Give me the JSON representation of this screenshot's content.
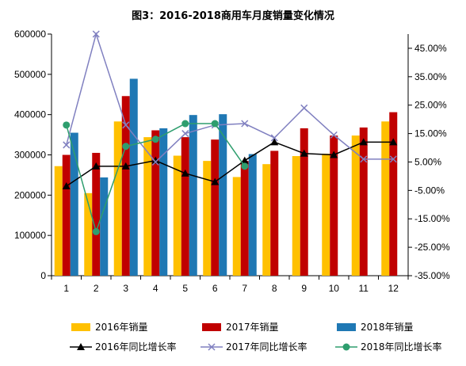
{
  "chart_data": {
    "type": "bar",
    "title": "图3：2016-2018商用车月度销量变化情况",
    "categories": [
      "1",
      "2",
      "3",
      "4",
      "5",
      "6",
      "7",
      "8",
      "9",
      "10",
      "11",
      "12"
    ],
    "y_left": {
      "ylim": [
        0,
        600000
      ],
      "ticks": [
        0,
        100000,
        200000,
        300000,
        400000,
        500000,
        600000
      ],
      "tick_labels": [
        "0",
        "100000",
        "200000",
        "300000",
        "400000",
        "500000",
        "600000"
      ]
    },
    "y_right": {
      "ylim": [
        -35,
        50
      ],
      "ticks": [
        -35,
        -25,
        -15,
        -5,
        5,
        15,
        25,
        35,
        45
      ],
      "tick_labels": [
        "-35.00%",
        "-25.00%",
        "-15.00%",
        "-5.00%",
        "5.00%",
        "15.00%",
        "25.00%",
        "35.00%",
        "45.00%"
      ]
    },
    "bar_series": [
      {
        "name": "2016年销量",
        "color": "#FFC000",
        "values": [
          272000,
          205000,
          383000,
          344000,
          298000,
          285000,
          245000,
          277000,
          297000,
          303000,
          348000,
          383000
        ]
      },
      {
        "name": "2017年销量",
        "color": "#C00000",
        "values": [
          300000,
          305000,
          446000,
          361000,
          344000,
          338000,
          285000,
          310000,
          366000,
          348000,
          368000,
          406000
        ]
      },
      {
        "name": "2018年销量",
        "color": "#1F78B4",
        "values": [
          355000,
          244000,
          489000,
          366000,
          399000,
          401000,
          302000,
          null,
          null,
          null,
          null,
          null
        ]
      }
    ],
    "line_series": [
      {
        "name": "2016年同比增长率",
        "color": "#000000",
        "marker": "triangle",
        "values": [
          -3.5,
          3.5,
          3.5,
          5.5,
          1.0,
          -2.0,
          5.5,
          12.0,
          8.0,
          7.5,
          12.0,
          12.0
        ]
      },
      {
        "name": "2017年同比增长率",
        "color": "#8080C0",
        "marker": "x",
        "values": [
          11.0,
          50.0,
          18.0,
          5.0,
          15.0,
          18.0,
          18.5,
          13.5,
          24.0,
          14.5,
          6.0,
          6.0
        ]
      },
      {
        "name": "2018年同比增长率",
        "color": "#2E9E6E",
        "marker": "circle",
        "values": [
          18.0,
          -19.5,
          10.5,
          13.0,
          18.5,
          18.5,
          3.5,
          null,
          null,
          null,
          null,
          null
        ]
      }
    ],
    "legend_position": "bottom",
    "grid": false
  }
}
